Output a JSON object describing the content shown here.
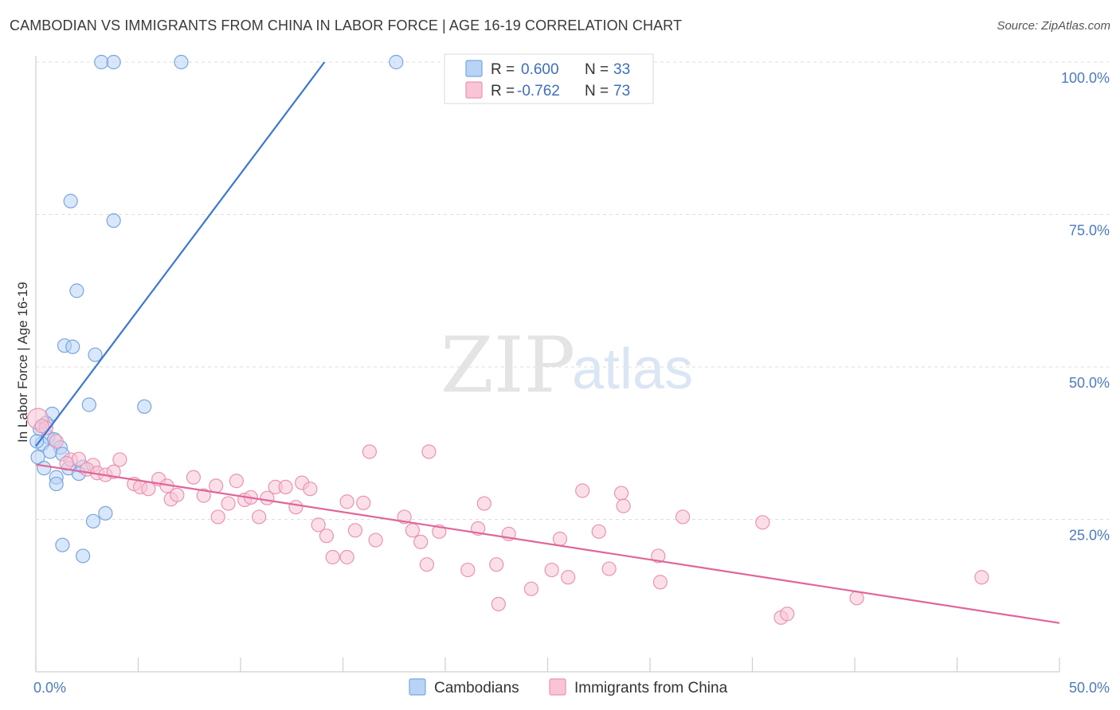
{
  "header": {
    "title": "CAMBODIAN VS IMMIGRANTS FROM CHINA IN LABOR FORCE | AGE 16-19 CORRELATION CHART",
    "source": "Source: ZipAtlas.com"
  },
  "watermark": {
    "zip": "ZIP",
    "atlas": "atlas"
  },
  "legend": {
    "r_label": "R =",
    "n_label": "N =",
    "items": [
      {
        "r": "0.600",
        "n": "33",
        "fill": "#b8d3f5",
        "stroke": "#7aa5e0"
      },
      {
        "r": "-0.762",
        "n": "73",
        "fill": "#f8c4d6",
        "stroke": "#eb93b2"
      }
    ]
  },
  "bottom_legend": [
    {
      "label": "Cambodians",
      "fill": "#b8d3f5",
      "stroke": "#7aa5e0"
    },
    {
      "label": "Immigrants from China",
      "fill": "#f8c4d6",
      "stroke": "#eb93b2"
    }
  ],
  "chart_data": {
    "type": "scatter",
    "title": "CAMBODIAN VS IMMIGRANTS FROM CHINA IN LABOR FORCE | AGE 16-19 CORRELATION CHART",
    "xlabel": "",
    "ylabel": "In Labor Force | Age 16-19",
    "xlim": [
      0,
      50
    ],
    "ylim": [
      0,
      105
    ],
    "x_ticks": [
      0,
      50
    ],
    "x_tick_labels": [
      "0.0%",
      "50.0%"
    ],
    "y_ticks": [
      25,
      50,
      75,
      100
    ],
    "y_tick_labels": [
      "25.0%",
      "50.0%",
      "75.0%",
      "100.0%"
    ],
    "grid": "horizontal dashed",
    "legend_position": "top-center",
    "colors": {
      "cambodians": "#3a78d4",
      "china": "#e0669a"
    },
    "series": [
      {
        "name": "Cambodians",
        "color": "#3a78d4",
        "points": [
          [
            3.2,
            100
          ],
          [
            3.8,
            100
          ],
          [
            7.1,
            100
          ],
          [
            17.6,
            100
          ],
          [
            1.7,
            77.2
          ],
          [
            3.8,
            74.0
          ],
          [
            2.0,
            62.5
          ],
          [
            1.4,
            53.5
          ],
          [
            1.8,
            53.3
          ],
          [
            2.9,
            52.0
          ],
          [
            2.6,
            43.8
          ],
          [
            5.3,
            43.5
          ],
          [
            0.8,
            42.3
          ],
          [
            0.5,
            40.8
          ],
          [
            0.2,
            39.8
          ],
          [
            0.6,
            38.5
          ],
          [
            0.9,
            38.1
          ],
          [
            0.3,
            37.4
          ],
          [
            1.2,
            36.8
          ],
          [
            0.7,
            36.1
          ],
          [
            1.3,
            35.7
          ],
          [
            0.1,
            35.2
          ],
          [
            0.4,
            33.4
          ],
          [
            1.6,
            33.4
          ],
          [
            2.3,
            33.6
          ],
          [
            1.0,
            31.9
          ],
          [
            2.1,
            32.5
          ],
          [
            1.0,
            30.8
          ],
          [
            3.4,
            26.0
          ],
          [
            2.8,
            24.7
          ],
          [
            1.3,
            20.8
          ],
          [
            2.3,
            19.0
          ],
          [
            0.05,
            37.8
          ]
        ]
      },
      {
        "name": "Immigrants from China",
        "color": "#e0669a",
        "points": [
          [
            0.1,
            41.5
          ],
          [
            0.5,
            40.0
          ],
          [
            1.0,
            37.8
          ],
          [
            1.7,
            34.8
          ],
          [
            2.1,
            34.9
          ],
          [
            1.5,
            34.2
          ],
          [
            2.8,
            33.9
          ],
          [
            2.5,
            33.2
          ],
          [
            3.0,
            32.6
          ],
          [
            3.4,
            32.3
          ],
          [
            3.8,
            32.8
          ],
          [
            4.1,
            34.8
          ],
          [
            4.8,
            30.8
          ],
          [
            5.1,
            30.3
          ],
          [
            5.5,
            30.0
          ],
          [
            6.0,
            31.6
          ],
          [
            6.4,
            30.5
          ],
          [
            6.6,
            28.3
          ],
          [
            6.9,
            29.0
          ],
          [
            7.7,
            31.9
          ],
          [
            8.2,
            28.9
          ],
          [
            8.8,
            30.5
          ],
          [
            8.9,
            25.4
          ],
          [
            9.4,
            27.6
          ],
          [
            9.8,
            31.3
          ],
          [
            10.2,
            28.2
          ],
          [
            10.5,
            28.6
          ],
          [
            10.9,
            25.4
          ],
          [
            11.3,
            28.5
          ],
          [
            11.7,
            30.3
          ],
          [
            12.2,
            30.3
          ],
          [
            12.7,
            27.0
          ],
          [
            13.0,
            31.0
          ],
          [
            13.4,
            30.0
          ],
          [
            13.8,
            24.1
          ],
          [
            14.2,
            22.3
          ],
          [
            14.5,
            18.8
          ],
          [
            15.2,
            27.9
          ],
          [
            15.2,
            18.8
          ],
          [
            15.6,
            23.2
          ],
          [
            16.0,
            27.7
          ],
          [
            16.3,
            36.1
          ],
          [
            16.6,
            21.6
          ],
          [
            18.0,
            25.4
          ],
          [
            18.4,
            23.2
          ],
          [
            18.8,
            21.3
          ],
          [
            19.1,
            17.6
          ],
          [
            19.2,
            36.1
          ],
          [
            19.7,
            23.0
          ],
          [
            21.1,
            16.7
          ],
          [
            21.6,
            23.5
          ],
          [
            21.9,
            27.6
          ],
          [
            22.5,
            17.6
          ],
          [
            22.6,
            11.1
          ],
          [
            23.1,
            22.6
          ],
          [
            24.2,
            13.6
          ],
          [
            25.2,
            16.7
          ],
          [
            25.6,
            21.8
          ],
          [
            26.0,
            15.5
          ],
          [
            26.7,
            29.7
          ],
          [
            27.5,
            23.0
          ],
          [
            28.0,
            16.9
          ],
          [
            28.6,
            29.3
          ],
          [
            28.7,
            27.2
          ],
          [
            30.4,
            19.0
          ],
          [
            30.5,
            14.7
          ],
          [
            31.6,
            25.4
          ],
          [
            35.5,
            24.5
          ],
          [
            36.4,
            8.9
          ],
          [
            36.7,
            9.5
          ],
          [
            40.1,
            12.1
          ],
          [
            46.2,
            15.5
          ],
          [
            0.3,
            40.3
          ]
        ]
      }
    ],
    "trend_lines": [
      {
        "series": "Cambodians",
        "from": [
          0,
          37.0
        ],
        "to": [
          14.1,
          100
        ]
      },
      {
        "series": "Immigrants from China",
        "from": [
          0,
          34.0
        ],
        "to": [
          50,
          8.0
        ]
      }
    ]
  }
}
